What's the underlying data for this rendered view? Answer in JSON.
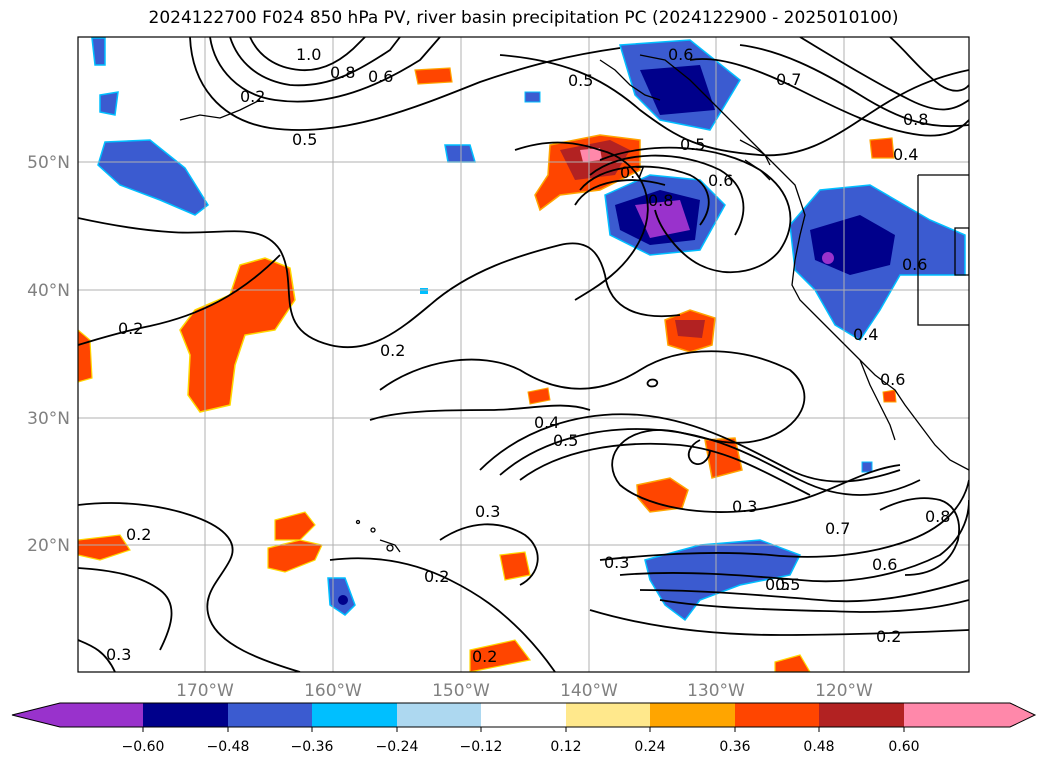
{
  "title": "2024122700 F024 850 hPa PV, river basin precipitation PC (2024122900 - 2025010100)",
  "latitude_labels": [
    "50°N",
    "40°N",
    "30°N",
    "20°N"
  ],
  "longitude_labels": [
    "170°W",
    "160°W",
    "150°W",
    "140°W",
    "130°W",
    "120°W"
  ],
  "contour_labels": [
    "1.0",
    "0.8",
    "0.6",
    "0.5",
    "0.6",
    "0.7",
    "0.8",
    "0.4",
    "0.5",
    "0.6",
    "0.7",
    "0.8",
    "0.6",
    "0.5",
    "0.5",
    "0.2",
    "0.2",
    "0.2",
    "0.4",
    "0.5",
    "0.3",
    "0.3",
    "0.3",
    "0.2",
    "0.2",
    "0.5",
    "0.6",
    "0.7",
    "0.8",
    "0.2",
    "0.3",
    "0.6",
    "0.4",
    "0.2"
  ],
  "colorbar": {
    "tick_labels": [
      "−0.60",
      "−0.48",
      "−0.36",
      "−0.24",
      "−0.12",
      "0.12",
      "0.24",
      "0.36",
      "0.48",
      "0.60"
    ],
    "colors": [
      "#9932cc",
      "#00008b",
      "#3b5bd0",
      "#00bfff",
      "#add8f0",
      "#ffffff",
      "#ffe88c",
      "#ffa500",
      "#ff4500",
      "#b22222",
      "#ff88aa"
    ]
  }
}
